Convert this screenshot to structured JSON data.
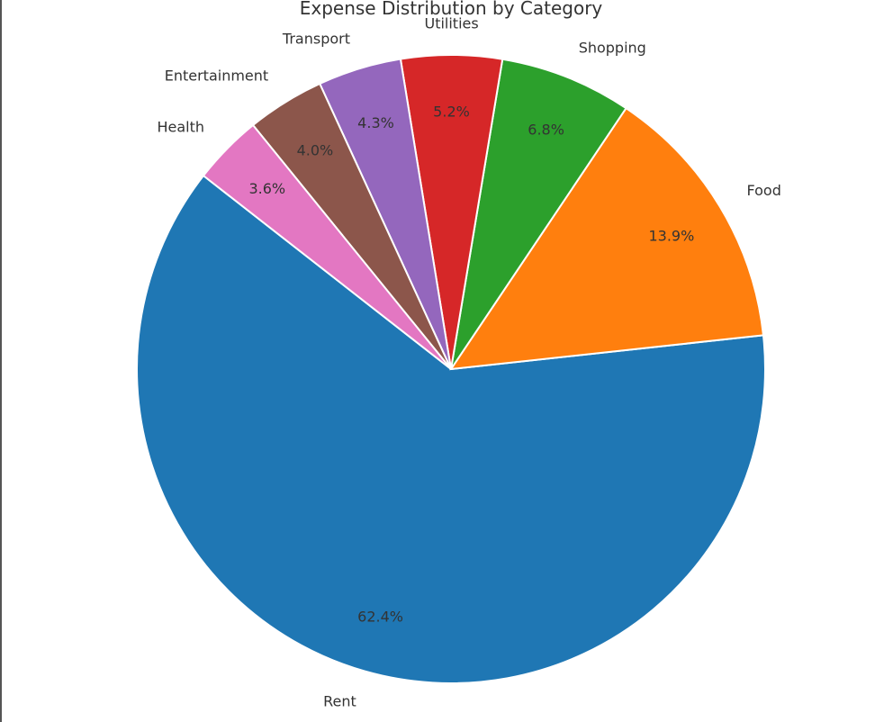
{
  "chart_data": {
    "type": "pie",
    "title": "Expense Distribution by Category",
    "categories": [
      "Rent",
      "Food",
      "Shopping",
      "Utilities",
      "Transport",
      "Entertainment",
      "Health"
    ],
    "values": [
      62.4,
      13.9,
      6.8,
      5.2,
      4.3,
      4.0,
      3.6
    ],
    "value_labels": [
      "62.4%",
      "13.9%",
      "6.8%",
      "5.2%",
      "4.3%",
      "4.0%",
      "3.6%"
    ],
    "colors": [
      "#1f77b4",
      "#ff7f0e",
      "#2ca02c",
      "#d62728",
      "#9467bd",
      "#8c564b",
      "#e377c2"
    ],
    "start_angle_deg": 142,
    "direction": "counterclockwise",
    "wedge_edge_color": "#ffffff",
    "legend": "none"
  }
}
